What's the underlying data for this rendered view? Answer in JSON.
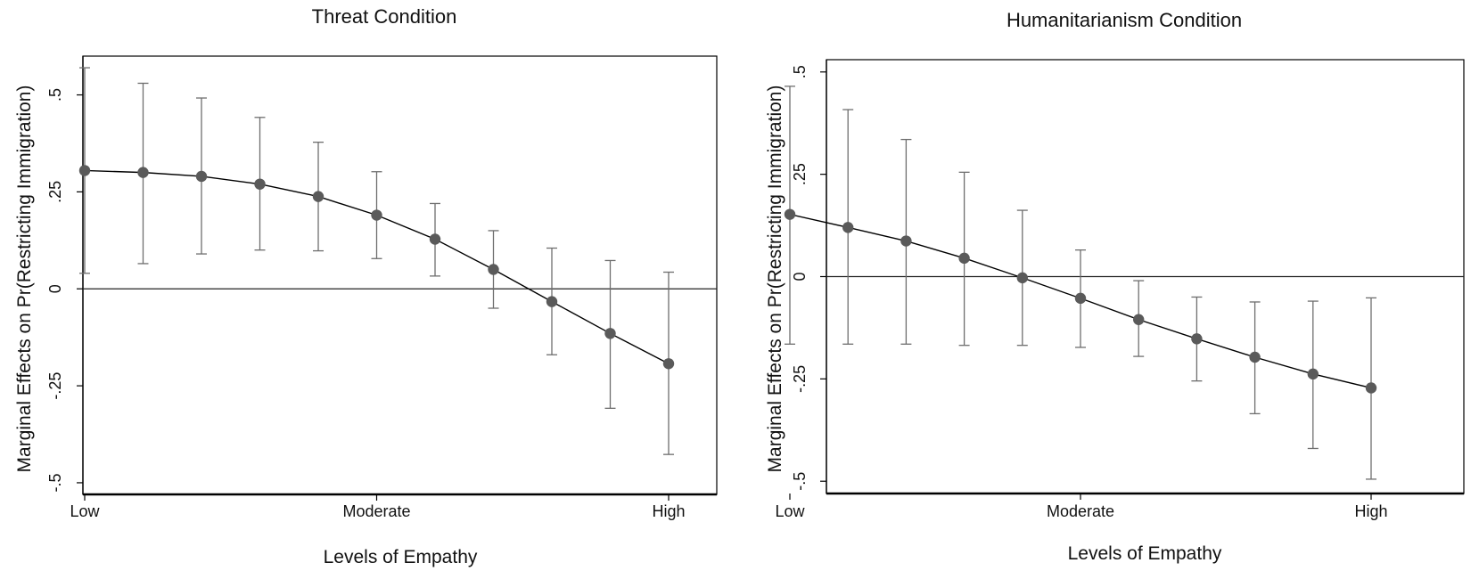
{
  "chart_data": [
    {
      "type": "line",
      "title": "Threat Condition",
      "xlabel": "Levels of Empathy",
      "ylabel": "Marginal Effects on Pr(Restricting Immigration)",
      "x_tick_labels": [
        "Low",
        "Moderate",
        "High"
      ],
      "y_ticks": [
        {
          "value": -0.5,
          "label": "-.5"
        },
        {
          "value": -0.25,
          "label": "-.25"
        },
        {
          "value": 0,
          "label": "0"
        },
        {
          "value": 0.25,
          "label": ".25"
        },
        {
          "value": 0.5,
          "label": ".5"
        }
      ],
      "xlim": [
        0,
        10
      ],
      "ylim": [
        -0.53,
        0.6
      ],
      "reference_line": 0,
      "grid": false,
      "marker_color": "#5a5a5a",
      "line_color": "#000000",
      "errorbar_color": "#6e6e6e",
      "series": [
        {
          "x": [
            0,
            1,
            2,
            3,
            4,
            5,
            6,
            7,
            8,
            9,
            10
          ],
          "values": [
            0.305,
            0.3,
            0.29,
            0.27,
            0.238,
            0.19,
            0.128,
            0.05,
            -0.033,
            -0.115,
            -0.193
          ],
          "ci_lower": [
            0.04,
            0.065,
            0.09,
            0.1,
            0.098,
            0.078,
            0.033,
            -0.05,
            -0.17,
            -0.308,
            -0.427
          ],
          "ci_upper": [
            0.57,
            0.53,
            0.492,
            0.442,
            0.378,
            0.302,
            0.22,
            0.15,
            0.105,
            0.073,
            0.043
          ]
        }
      ]
    },
    {
      "type": "line",
      "title": "Humanitarianism Condition",
      "xlabel": "Levels of Empathy",
      "ylabel": "Marginal Effects on Pr(Restricting Immigration)",
      "x_tick_labels": [
        "Low",
        "Moderate",
        "High"
      ],
      "y_ticks": [
        {
          "value": -0.5,
          "label": "-.5"
        },
        {
          "value": -0.25,
          "label": "-.25"
        },
        {
          "value": 0,
          "label": "0"
        },
        {
          "value": 0.25,
          "label": ".25"
        },
        {
          "value": 0.5,
          "label": ".5"
        }
      ],
      "xlim": [
        0,
        10
      ],
      "ylim": [
        -0.53,
        0.53
      ],
      "reference_line": 0,
      "grid": false,
      "marker_color": "#5a5a5a",
      "line_color": "#000000",
      "errorbar_color": "#6e6e6e",
      "series": [
        {
          "x": [
            0,
            1,
            2,
            3,
            4,
            5,
            6,
            7,
            8,
            9,
            10
          ],
          "values": [
            0.152,
            0.12,
            0.087,
            0.045,
            -0.003,
            -0.053,
            -0.105,
            -0.152,
            -0.197,
            -0.238,
            -0.272
          ],
          "ci_lower": [
            -0.165,
            -0.165,
            -0.165,
            -0.168,
            -0.168,
            -0.173,
            -0.195,
            -0.255,
            -0.335,
            -0.42,
            -0.495
          ],
          "ci_upper": [
            0.465,
            0.408,
            0.335,
            0.255,
            0.162,
            0.065,
            -0.01,
            -0.05,
            -0.062,
            -0.06,
            -0.052
          ]
        }
      ]
    }
  ]
}
